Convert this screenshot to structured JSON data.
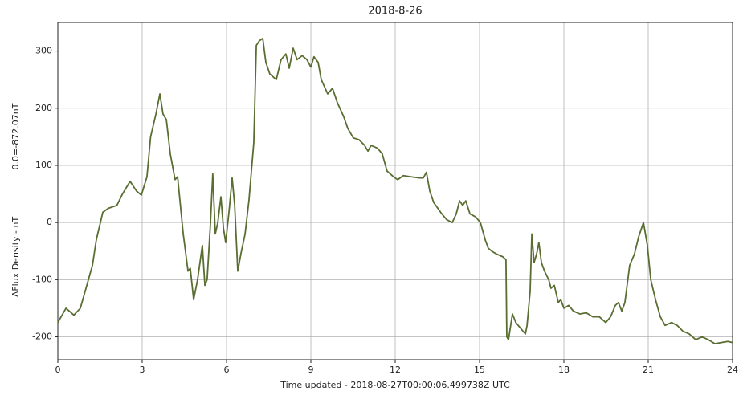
{
  "chart_data": {
    "type": "line",
    "title": "2018-8-26",
    "xlabel": "Time  updated - 2018-08-27T00:00:06.499738Z UTC",
    "ylabel": "ΔFlux Density - nT",
    "ylabel_note": "0.0=-872.07nT",
    "xlim": [
      0,
      24
    ],
    "xticks": [
      0,
      3,
      6,
      9,
      12,
      15,
      18,
      21,
      24
    ],
    "ylim": [
      -240,
      350
    ],
    "yticks": [
      -200,
      -100,
      0,
      100,
      200,
      300
    ],
    "grid": true,
    "series": [
      {
        "name": "ΔFlux Density",
        "color": "#5a6e32",
        "x": [
          0,
          0.29,
          0.57,
          0.8,
          1.03,
          1.23,
          1.37,
          1.6,
          1.8,
          2.1,
          2.3,
          2.57,
          2.8,
          2.97,
          3.17,
          3.3,
          3.49,
          3.63,
          3.74,
          3.86,
          4.0,
          4.17,
          4.26,
          4.34,
          4.46,
          4.63,
          4.71,
          4.83,
          4.97,
          5.14,
          5.23,
          5.31,
          5.43,
          5.51,
          5.6,
          5.69,
          5.8,
          5.89,
          5.97,
          6.09,
          6.2,
          6.29,
          6.4,
          6.51,
          6.66,
          6.8,
          6.97,
          7.06,
          7.17,
          7.29,
          7.4,
          7.54,
          7.77,
          7.94,
          8.11,
          8.23,
          8.37,
          8.51,
          8.69,
          8.86,
          9.0,
          9.11,
          9.26,
          9.37,
          9.6,
          9.77,
          9.94,
          10.17,
          10.31,
          10.51,
          10.71,
          10.91,
          11.03,
          11.14,
          11.37,
          11.54,
          11.71,
          11.94,
          12.09,
          12.29,
          12.57,
          12.86,
          13.0,
          13.11,
          13.23,
          13.37,
          13.66,
          13.83,
          14.03,
          14.17,
          14.29,
          14.4,
          14.51,
          14.66,
          14.86,
          15.03,
          15.2,
          15.31,
          15.43,
          15.6,
          15.83,
          15.94,
          15.97,
          16.03,
          16.17,
          16.29,
          16.46,
          16.63,
          16.69,
          16.8,
          16.86,
          16.94,
          17.03,
          17.11,
          17.2,
          17.31,
          17.46,
          17.54,
          17.66,
          17.8,
          17.89,
          18.0,
          18.17,
          18.34,
          18.57,
          18.8,
          19.03,
          19.26,
          19.49,
          19.66,
          19.83,
          19.94,
          20.06,
          20.17,
          20.34,
          20.51,
          20.66,
          20.83,
          20.97,
          21.09,
          21.26,
          21.43,
          21.6,
          21.83,
          22.03,
          22.23,
          22.46,
          22.69,
          22.91,
          23.14,
          23.37,
          23.6,
          23.83,
          24.0
        ],
        "values": [
          -175,
          -150,
          -162,
          -150,
          -110,
          -75,
          -30,
          18,
          25,
          30,
          50,
          72,
          55,
          48,
          80,
          150,
          190,
          225,
          190,
          180,
          120,
          75,
          80,
          40,
          -20,
          -85,
          -80,
          -135,
          -100,
          -40,
          -110,
          -100,
          0,
          85,
          -20,
          0,
          45,
          -10,
          -35,
          20,
          78,
          30,
          -85,
          -55,
          -20,
          40,
          140,
          310,
          318,
          322,
          280,
          260,
          250,
          285,
          295,
          270,
          305,
          285,
          292,
          285,
          272,
          290,
          280,
          250,
          225,
          235,
          210,
          185,
          165,
          148,
          145,
          135,
          125,
          135,
          130,
          120,
          90,
          80,
          75,
          82,
          80,
          78,
          78,
          88,
          55,
          35,
          15,
          5,
          0,
          15,
          38,
          30,
          38,
          15,
          10,
          0,
          -30,
          -45,
          -50,
          -55,
          -60,
          -65,
          -200,
          -205,
          -160,
          -175,
          -185,
          -195,
          -180,
          -120,
          -20,
          -70,
          -55,
          -35,
          -70,
          -85,
          -100,
          -115,
          -110,
          -140,
          -135,
          -150,
          -145,
          -155,
          -160,
          -158,
          -165,
          -165,
          -175,
          -165,
          -145,
          -140,
          -155,
          -140,
          -75,
          -55,
          -25,
          0,
          -40,
          -100,
          -135,
          -165,
          -180,
          -175,
          -180,
          -190,
          -195,
          -205,
          -200,
          -205,
          -212,
          -210,
          -208,
          -210
        ]
      }
    ]
  }
}
